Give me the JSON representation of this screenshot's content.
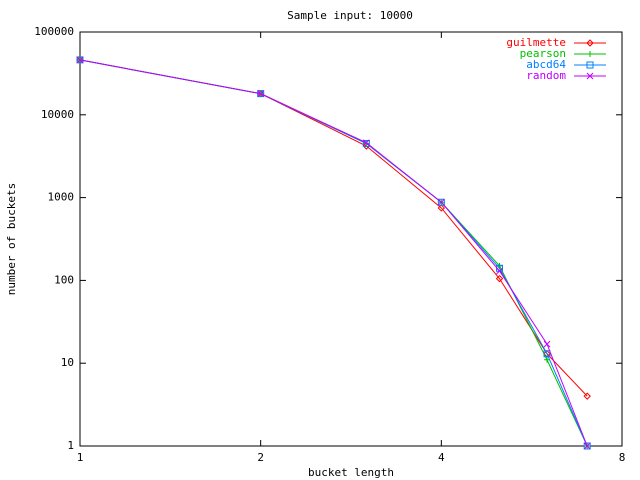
{
  "chart_data": {
    "type": "line",
    "title": "Sample input: 10000",
    "xlabel": "bucket length",
    "ylabel": "number of buckets",
    "x": [
      1,
      2,
      3,
      4,
      5,
      6,
      7
    ],
    "series": [
      {
        "name": "guilmette",
        "color": "#ff0000",
        "marker": "diamond",
        "values": [
          46000,
          18000,
          4200,
          750,
          105,
          13,
          4
        ]
      },
      {
        "name": "pearson",
        "color": "#00c000",
        "marker": "plus",
        "values": [
          46000,
          18000,
          4500,
          880,
          150,
          11,
          1
        ]
      },
      {
        "name": "abcd64",
        "color": "#0080ff",
        "marker": "square",
        "values": [
          46000,
          18000,
          4500,
          880,
          140,
          13,
          1
        ]
      },
      {
        "name": "random",
        "color": "#c000ff",
        "marker": "cross",
        "values": [
          46000,
          18000,
          4600,
          880,
          130,
          17,
          1
        ]
      }
    ],
    "xlim": [
      1,
      8
    ],
    "ylim": [
      1,
      100000
    ],
    "xticks": [
      1,
      2,
      4,
      8
    ],
    "yticks": [
      1,
      10,
      100,
      1000,
      10000,
      100000
    ],
    "xlog": true,
    "ylog": true,
    "legend": "top-right"
  }
}
